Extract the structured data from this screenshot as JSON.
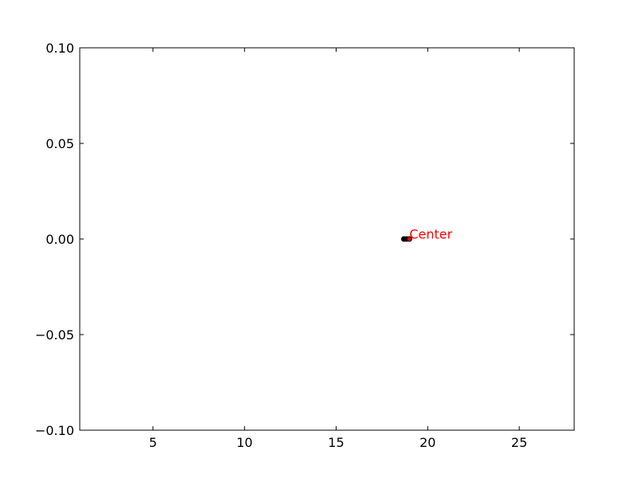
{
  "chart_data": {
    "type": "scatter",
    "title": "",
    "xlabel": "",
    "ylabel": "",
    "xlim": [
      1,
      28
    ],
    "ylim": [
      -0.1,
      0.1
    ],
    "xticks": [
      5,
      10,
      15,
      20,
      25
    ],
    "xtick_labels": [
      "5",
      "10",
      "15",
      "20",
      "25"
    ],
    "yticks": [
      -0.1,
      -0.05,
      0.0,
      0.05,
      0.1
    ],
    "ytick_labels": [
      "−0.10",
      "−0.05",
      "0.00",
      "0.05",
      "0.10"
    ],
    "grid": false,
    "legend": "none",
    "series": [
      {
        "color": "#000000",
        "points": [
          {
            "x": 18.7,
            "y": 0.0
          },
          {
            "x": 18.85,
            "y": 0.0
          }
        ]
      },
      {
        "color": "#ff0000",
        "points": [
          {
            "x": 19.0,
            "y": 0.0
          }
        ]
      }
    ],
    "annotations": [
      {
        "text": "Center",
        "x": 19.0,
        "y": 0.0,
        "color": "#ff0000"
      }
    ]
  }
}
